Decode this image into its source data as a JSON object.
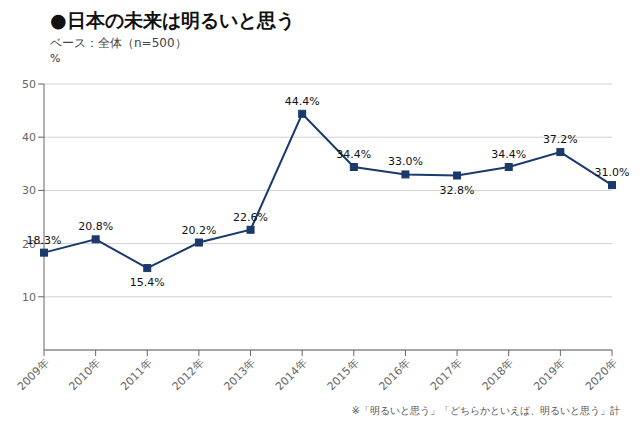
{
  "chart_data": {
    "type": "line",
    "title": "●日本の未来は明るいと思う",
    "subtitle": "ベース：全体（n=500）",
    "categories": [
      "2009年",
      "2010年",
      "2011年",
      "2012年",
      "2013年",
      "2014年",
      "2015年",
      "2016年",
      "2017年",
      "2018年",
      "2019年",
      "2020年"
    ],
    "values": [
      18.3,
      20.8,
      15.4,
      20.2,
      22.6,
      44.4,
      34.4,
      33.0,
      32.8,
      34.4,
      37.2,
      31.0
    ],
    "value_labels": [
      "18.3%",
      "20.8%",
      "15.4%",
      "20.2%",
      "22.6%",
      "44.4%",
      "34.4%",
      "33.0%",
      "32.8%",
      "34.4%",
      "37.2%",
      "31.0%"
    ],
    "data_labels": true,
    "color": "#1a3a6b",
    "marker": "square",
    "ylabel": "%",
    "ylim": [
      0,
      50
    ],
    "yticks": [
      10,
      20,
      30,
      40,
      50
    ],
    "grid": true,
    "footnote": "※「明るいと思う」「どちらかといえば、明るいと思う」計"
  }
}
